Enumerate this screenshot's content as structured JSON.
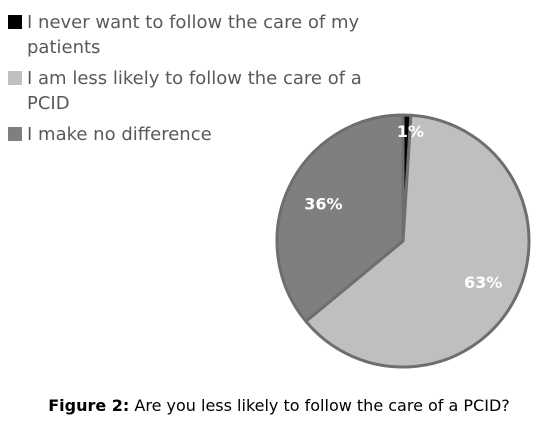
{
  "chart_data": {
    "type": "pie",
    "categories": [
      "I never want to follow the care of my patients",
      "I am less likely to follow the care of a PCID",
      "I make no difference"
    ],
    "values": [
      1,
      63,
      36
    ],
    "data_labels": [
      "1%",
      "63%",
      "36%"
    ],
    "colors": [
      "#000000",
      "#bfbfbf",
      "#7f7f7f"
    ],
    "legend_position": "top-left"
  },
  "caption": {
    "label": "Figure 2:",
    "text": "Are you less likely to follow the care of a PCID?"
  }
}
